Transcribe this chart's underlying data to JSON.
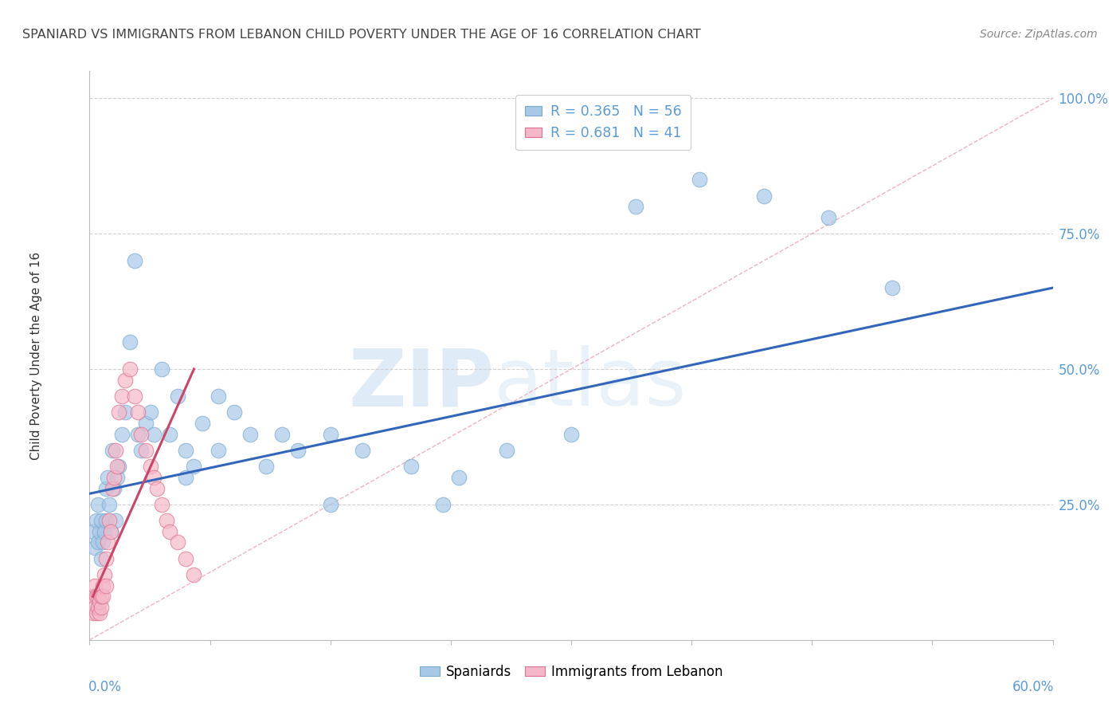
{
  "title": "SPANIARD VS IMMIGRANTS FROM LEBANON CHILD POVERTY UNDER THE AGE OF 16 CORRELATION CHART",
  "source": "Source: ZipAtlas.com",
  "ylabel": "Child Poverty Under the Age of 16",
  "xlim": [
    0.0,
    0.6
  ],
  "ylim": [
    0.0,
    1.05
  ],
  "watermark_zip": "ZIP",
  "watermark_atlas": "atlas",
  "background_color": "#FFFFFF",
  "grid_color": "#CCCCCC",
  "title_color": "#444444",
  "tick_color": "#5B9BD5",
  "sp_color": "#A8C8E8",
  "sp_edge_color": "#7AAACF",
  "lb_color": "#F4B8C8",
  "lb_edge_color": "#E07090",
  "line_sp_color": "#3366BB",
  "line_lb_color": "#CC4466",
  "diag_color": "#E8A0B0",
  "spaniards_x": [
    0.002,
    0.003,
    0.004,
    0.005,
    0.005,
    0.006,
    0.007,
    0.007,
    0.008,
    0.009,
    0.01,
    0.01,
    0.011,
    0.012,
    0.013,
    0.014,
    0.015,
    0.016,
    0.017,
    0.018,
    0.02,
    0.022,
    0.025,
    0.028,
    0.03,
    0.032,
    0.035,
    0.038,
    0.04,
    0.045,
    0.05,
    0.055,
    0.06,
    0.065,
    0.07,
    0.08,
    0.09,
    0.1,
    0.11,
    0.12,
    0.13,
    0.15,
    0.17,
    0.2,
    0.23,
    0.26,
    0.3,
    0.34,
    0.38,
    0.42,
    0.46,
    0.5,
    0.06,
    0.08,
    0.15,
    0.22
  ],
  "spaniards_y": [
    0.2,
    0.17,
    0.22,
    0.18,
    0.25,
    0.2,
    0.22,
    0.15,
    0.18,
    0.2,
    0.22,
    0.28,
    0.3,
    0.25,
    0.2,
    0.35,
    0.28,
    0.22,
    0.3,
    0.32,
    0.38,
    0.42,
    0.55,
    0.7,
    0.38,
    0.35,
    0.4,
    0.42,
    0.38,
    0.5,
    0.38,
    0.45,
    0.35,
    0.32,
    0.4,
    0.45,
    0.42,
    0.38,
    0.32,
    0.38,
    0.35,
    0.38,
    0.35,
    0.32,
    0.3,
    0.35,
    0.38,
    0.8,
    0.85,
    0.82,
    0.78,
    0.65,
    0.3,
    0.35,
    0.25,
    0.25
  ],
  "lebanon_x": [
    0.002,
    0.002,
    0.003,
    0.003,
    0.004,
    0.004,
    0.005,
    0.005,
    0.006,
    0.006,
    0.007,
    0.007,
    0.008,
    0.008,
    0.009,
    0.01,
    0.01,
    0.011,
    0.012,
    0.013,
    0.014,
    0.015,
    0.016,
    0.017,
    0.018,
    0.02,
    0.022,
    0.025,
    0.028,
    0.03,
    0.032,
    0.035,
    0.038,
    0.04,
    0.042,
    0.045,
    0.048,
    0.05,
    0.055,
    0.06,
    0.065
  ],
  "lebanon_y": [
    0.08,
    0.05,
    0.06,
    0.1,
    0.08,
    0.05,
    0.06,
    0.08,
    0.05,
    0.07,
    0.06,
    0.08,
    0.1,
    0.08,
    0.12,
    0.1,
    0.15,
    0.18,
    0.22,
    0.2,
    0.28,
    0.3,
    0.35,
    0.32,
    0.42,
    0.45,
    0.48,
    0.5,
    0.45,
    0.42,
    0.38,
    0.35,
    0.32,
    0.3,
    0.28,
    0.25,
    0.22,
    0.2,
    0.18,
    0.15,
    0.12
  ],
  "sp_line_x0": 0.0,
  "sp_line_y0": 0.27,
  "sp_line_x1": 0.6,
  "sp_line_y1": 0.65,
  "lb_line_x0": 0.002,
  "lb_line_y0": 0.08,
  "lb_line_x1": 0.065,
  "lb_line_y1": 0.5
}
